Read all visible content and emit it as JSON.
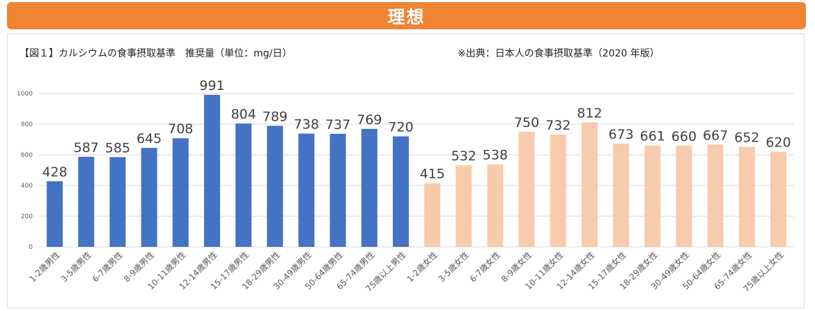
{
  "banner": {
    "title": "理想"
  },
  "caption": {
    "left": "【図１】カルシウムの食事摂取基準　推奨量（単位：mg/日）",
    "right": "※出典：日本人の食事摂取基準（2020 年版）"
  },
  "colors": {
    "banner": "#ef8433",
    "male": "#4472c4",
    "female": "#f8cbad",
    "grid": "#d9d9d9"
  },
  "chart_data": {
    "type": "bar",
    "title": "",
    "xlabel": "",
    "ylabel": "",
    "ylim": [
      0,
      1000
    ],
    "yticks": [
      0,
      200,
      400,
      600,
      800,
      1000
    ],
    "grid": true,
    "data_labels": true,
    "categories": [
      "1-2歳男性",
      "3-5歳男性",
      "6-7歳男性",
      "8-9歳男性",
      "10-11歳男性",
      "12-14歳男性",
      "15-17歳男性",
      "18-29歳男性",
      "30-49歳男性",
      "50-64歳男性",
      "65-74歳男性",
      "75歳以上男性",
      "1-2歳女性",
      "3-5歳女性",
      "6-7歳女性",
      "8-9歳女性",
      "10-11歳女性",
      "12-14歳女性",
      "15-17歳女性",
      "18-29歳女性",
      "30-49歳女性",
      "50-64歳女性",
      "65-74歳女性",
      "75歳以上女性"
    ],
    "values": [
      428,
      587,
      585,
      645,
      708,
      991,
      804,
      789,
      738,
      737,
      769,
      720,
      415,
      532,
      538,
      750,
      732,
      812,
      673,
      661,
      660,
      667,
      652,
      620
    ],
    "bar_colors": [
      "#4472c4",
      "#4472c4",
      "#4472c4",
      "#4472c4",
      "#4472c4",
      "#4472c4",
      "#4472c4",
      "#4472c4",
      "#4472c4",
      "#4472c4",
      "#4472c4",
      "#4472c4",
      "#f8cbad",
      "#f8cbad",
      "#f8cbad",
      "#f8cbad",
      "#f8cbad",
      "#f8cbad",
      "#f8cbad",
      "#f8cbad",
      "#f8cbad",
      "#f8cbad",
      "#f8cbad",
      "#f8cbad"
    ]
  }
}
